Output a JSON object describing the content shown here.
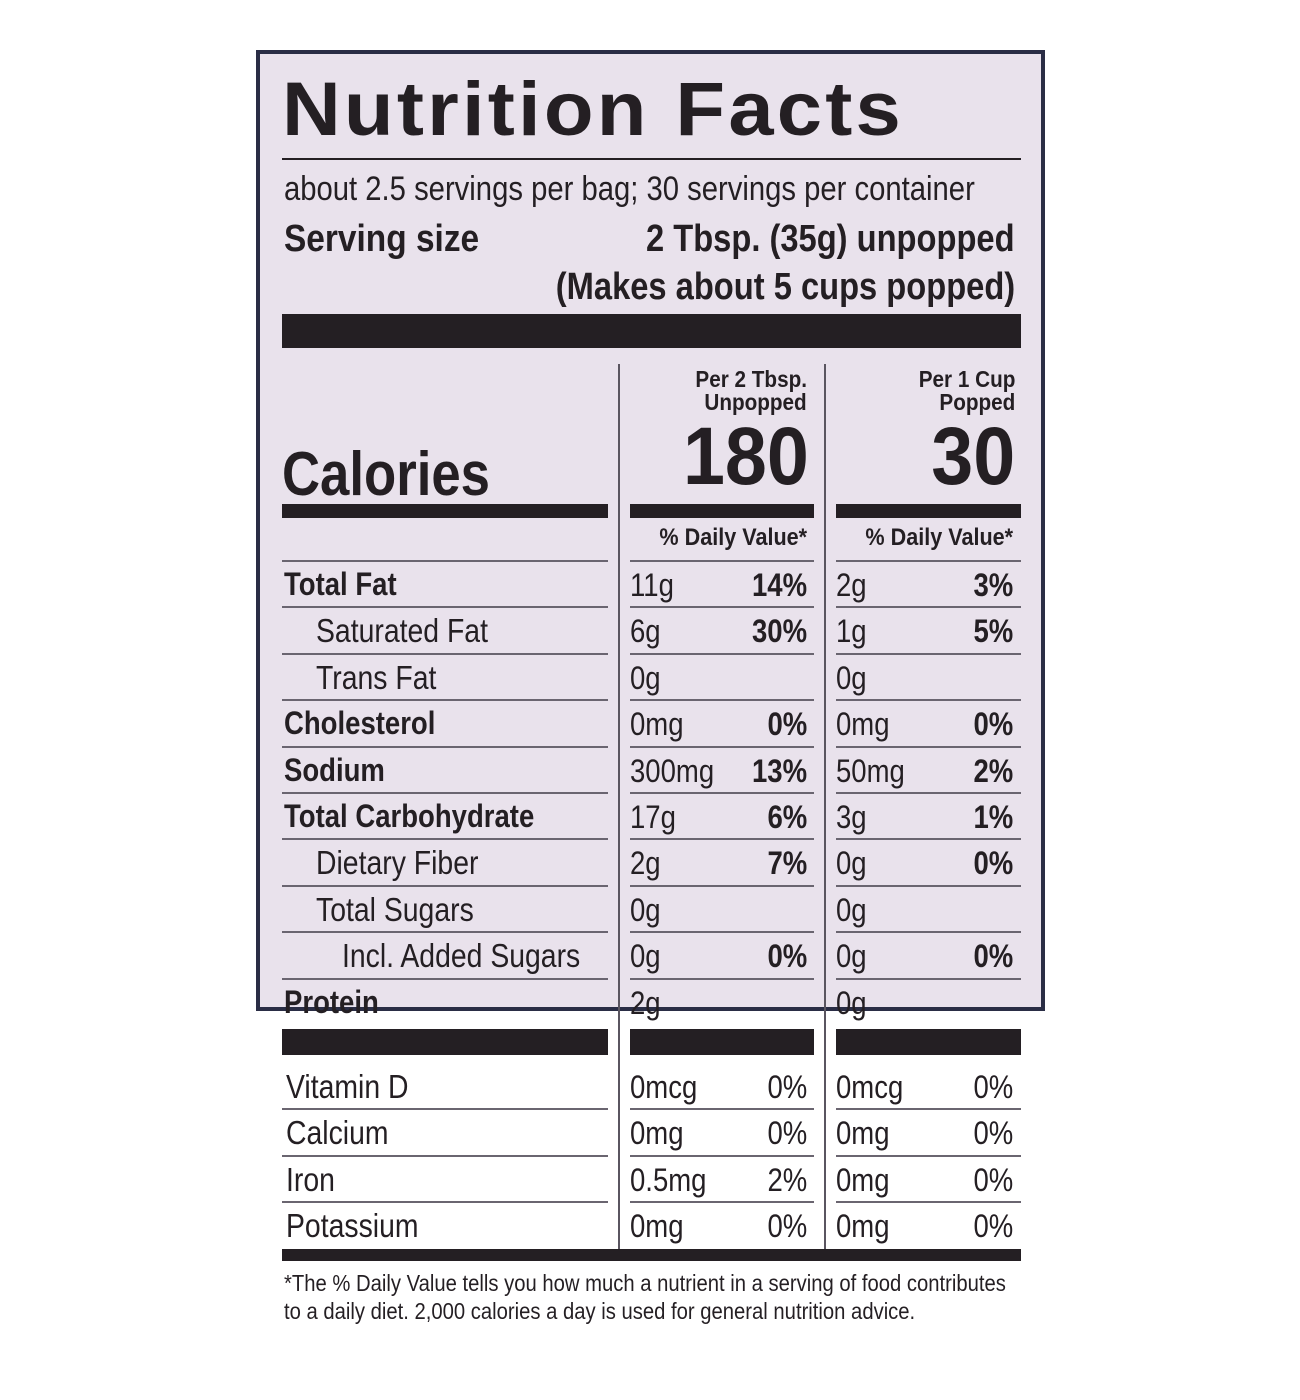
{
  "title": "Nutrition Facts",
  "servings_per": "about 2.5 servings per bag; 30 servings per container",
  "serving_size_label": "Serving size",
  "serving_size_value": "2 Tbsp. (35g) unpopped",
  "serving_size_note": "(Makes about 5 cups popped)",
  "columns": [
    {
      "line1": "Per 2 Tbsp.",
      "line2": "Unpopped",
      "calories": "180",
      "dv_header": "% Daily Value*"
    },
    {
      "line1": "Per 1 Cup",
      "line2": "Popped",
      "calories": "30",
      "dv_header": "% Daily Value*"
    }
  ],
  "calories_label": "Calories",
  "nutrients": [
    {
      "name": "Total Fat",
      "c1_amt": "11g",
      "c1_pct": "14%",
      "c2_amt": "2g",
      "c2_pct": "3%"
    },
    {
      "name": "Saturated Fat",
      "c1_amt": "6g",
      "c1_pct": "30%",
      "c2_amt": "1g",
      "c2_pct": "5%"
    },
    {
      "name": "Trans Fat",
      "c1_amt": "0g",
      "c1_pct": "",
      "c2_amt": "0g",
      "c2_pct": ""
    },
    {
      "name": "Cholesterol",
      "c1_amt": "0mg",
      "c1_pct": "0%",
      "c2_amt": "0mg",
      "c2_pct": "0%"
    },
    {
      "name": "Sodium",
      "c1_amt": "300mg",
      "c1_pct": "13%",
      "c2_amt": "50mg",
      "c2_pct": "2%"
    },
    {
      "name": "Total Carbohydrate",
      "c1_amt": "17g",
      "c1_pct": "6%",
      "c2_amt": "3g",
      "c2_pct": "1%"
    },
    {
      "name": "Dietary Fiber",
      "c1_amt": "2g",
      "c1_pct": "7%",
      "c2_amt": "0g",
      "c2_pct": "0%"
    },
    {
      "name": "Total Sugars",
      "c1_amt": "0g",
      "c1_pct": "",
      "c2_amt": "0g",
      "c2_pct": ""
    },
    {
      "name": "Incl. Added Sugars",
      "c1_amt": "0g",
      "c1_pct": "0%",
      "c2_amt": "0g",
      "c2_pct": "0%"
    },
    {
      "name": "Protein",
      "c1_amt": "2g",
      "c1_pct": "",
      "c2_amt": "0g",
      "c2_pct": ""
    }
  ],
  "vitamins": [
    {
      "name": "Vitamin D",
      "c1_amt": "0mcg",
      "c1_pct": "0%",
      "c2_amt": "0mcg",
      "c2_pct": "0%"
    },
    {
      "name": "Calcium",
      "c1_amt": "0mg",
      "c1_pct": "0%",
      "c2_amt": "0mg",
      "c2_pct": "0%"
    },
    {
      "name": "Iron",
      "c1_amt": "0.5mg",
      "c1_pct": "2%",
      "c2_amt": "0mg",
      "c2_pct": "0%"
    },
    {
      "name": "Potassium",
      "c1_amt": "0mg",
      "c1_pct": "0%",
      "c2_amt": "0mg",
      "c2_pct": "0%"
    }
  ],
  "footnote_line1": "*The % Daily Value tells you how much a nutrient in a serving of food contributes",
  "footnote_line2": "to a daily diet. 2,000 calories a day is used for general nutrition advice.",
  "colors": {
    "label_bg": "#e9e2ec",
    "ink": "#241f23",
    "border": "#2a2d45"
  }
}
